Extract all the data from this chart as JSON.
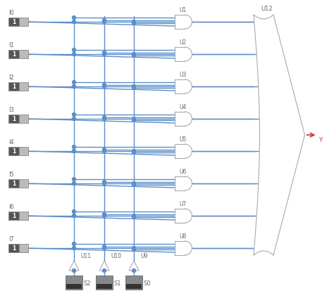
{
  "bg_color": "#ffffff",
  "wire_color": "#5b8fc9",
  "gate_outline": "#aaaaaa",
  "gate_fill": "#ffffff",
  "box_mid": "#909090",
  "box_dark": "#505050",
  "text_color": "#666666",
  "arrow_color": "#cc3333",
  "inputs": [
    "I0",
    "I1",
    "I2",
    "I3",
    "I4",
    "I5",
    "I6",
    "I7"
  ],
  "and_labels": [
    "U1",
    "U2",
    "U3",
    "U4",
    "U5",
    "U6",
    "U7",
    "U8"
  ],
  "or_label": "U12",
  "sel_labels": [
    "S2",
    "S1",
    "S0"
  ],
  "inv_labels": [
    "U11",
    "U10",
    "U9"
  ],
  "output_label": "Y",
  "fig_w": 4.74,
  "fig_h": 4.24,
  "dpi": 100,
  "xlim": [
    0,
    474
  ],
  "ylim": [
    0,
    424
  ]
}
